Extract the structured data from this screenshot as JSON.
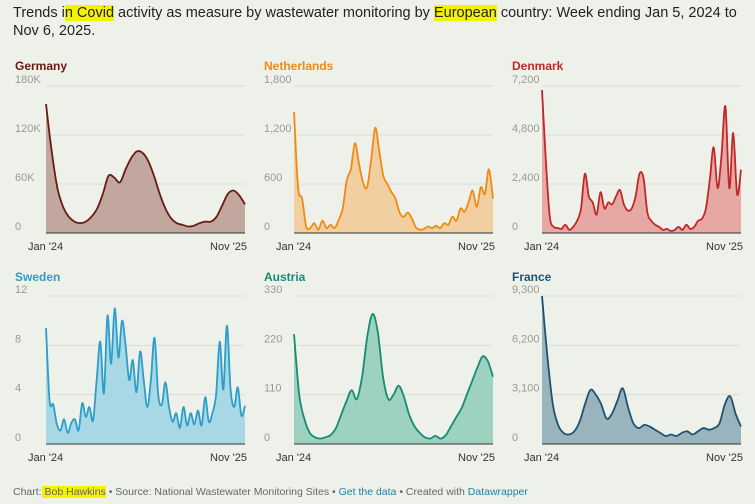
{
  "title": {
    "p1": "Trends i",
    "h1": "n Covid",
    "p2": " activity as measure by wastewater monitoring by ",
    "h2": "European",
    "p3": " country: Week ending Jan 5, 2024 to Nov 6, 2025."
  },
  "footer": {
    "chart_prefix": "Chart:",
    "author": " Bob Hawkins",
    "source": " • Source: National Wastewater Monitoring Sites • ",
    "get_data": "Get the data",
    "created": " • Created with ",
    "datawrapper": "Datawrapper"
  },
  "colors": {
    "background": "#eef1ea",
    "highlight": "#f3f200",
    "link": "#1d81a2"
  },
  "chart_data": [
    {
      "type": "area",
      "title": "Germany",
      "color": "#6b1a10",
      "fill": "#c2a79e",
      "yticks": [
        "180K",
        "120K",
        "60K",
        "0"
      ],
      "tick_values": [
        180000,
        120000,
        60000,
        0
      ],
      "ylim": [
        0,
        180000
      ],
      "xtick_labels": [
        "Jan '24",
        "Nov '25"
      ],
      "x": "weeks (Jan 5, 2024 – Nov 6, 2025)",
      "values": [
        158000,
        100000,
        55000,
        32000,
        20000,
        14000,
        12000,
        14000,
        20000,
        30000,
        48000,
        70000,
        68000,
        62000,
        78000,
        92000,
        100000,
        98000,
        88000,
        70000,
        48000,
        30000,
        18000,
        12000,
        10000,
        8000,
        9000,
        12000,
        14000,
        14000,
        20000,
        34000,
        48000,
        52000,
        46000,
        35000
      ]
    },
    {
      "type": "area",
      "title": "Netherlands",
      "color": "#ef8a13",
      "fill": "#f2cfa0",
      "yticks": [
        "1,800",
        "1,200",
        "600",
        "0"
      ],
      "tick_values": [
        1800,
        1200,
        600,
        0
      ],
      "ylim": [
        0,
        1800
      ],
      "xtick_labels": [
        "Jan '24",
        "Nov '25"
      ],
      "x": "weeks (Jan 5, 2024 – Nov 6, 2025)",
      "values": [
        1480,
        560,
        420,
        80,
        60,
        120,
        40,
        150,
        60,
        100,
        60,
        160,
        300,
        650,
        780,
        1100,
        850,
        620,
        560,
        900,
        1290,
        1000,
        700,
        600,
        500,
        420,
        250,
        200,
        250,
        180,
        70,
        40,
        50,
        80,
        60,
        90,
        60,
        120,
        100,
        200,
        150,
        300,
        260,
        380,
        520,
        320,
        560,
        480,
        780,
        420
      ]
    },
    {
      "type": "area",
      "title": "Denmark",
      "color": "#c22727",
      "fill": "#e6a8a4",
      "yticks": [
        "7,200",
        "4,800",
        "2,400",
        "0"
      ],
      "tick_values": [
        7200,
        4800,
        2400,
        0
      ],
      "ylim": [
        0,
        7200
      ],
      "xtick_labels": [
        "Jan '24",
        "Nov '25"
      ],
      "x": "weeks (Jan 5, 2024 – Nov 6, 2025)",
      "values": [
        7000,
        3500,
        800,
        300,
        250,
        200,
        400,
        150,
        300,
        600,
        1200,
        2900,
        1800,
        1500,
        900,
        2000,
        1200,
        1500,
        1400,
        1800,
        2100,
        1400,
        1100,
        1200,
        1800,
        2900,
        2700,
        1000,
        600,
        400,
        300,
        150,
        200,
        100,
        150,
        300,
        150,
        400,
        200,
        300,
        600,
        700,
        1200,
        2600,
        4200,
        2200,
        3800,
        6200,
        2200,
        4900,
        1900,
        3100
      ]
    },
    {
      "type": "area",
      "title": "Sweden",
      "color": "#2c9ec9",
      "fill": "#a8d8e6",
      "yticks": [
        "12",
        "8",
        "4",
        "0"
      ],
      "tick_values": [
        12,
        8,
        4,
        0
      ],
      "ylim": [
        0,
        12
      ],
      "xtick_labels": [
        "Jan '24",
        "Nov '25"
      ],
      "x": "weeks (Jan 5, 2024 – Nov 6, 2025)",
      "values": [
        9.4,
        3.5,
        3.2,
        1.6,
        1.1,
        2.0,
        0.9,
        1.7,
        2.0,
        1.1,
        3.3,
        2.2,
        3.0,
        1.9,
        5.2,
        8.3,
        4.1,
        10.4,
        6.5,
        11.0,
        7.0,
        10.0,
        8.0,
        5.2,
        6.8,
        4.2,
        7.5,
        5.2,
        3.0,
        5.2,
        8.6,
        4.0,
        3.2,
        5.0,
        3.0,
        1.8,
        2.5,
        1.3,
        3.0,
        1.5,
        2.5,
        1.6,
        2.7,
        1.5,
        3.8,
        1.8,
        2.5,
        4.0,
        8.3,
        4.4,
        9.6,
        4.5,
        3.0,
        4.6,
        2.3,
        3.1
      ]
    },
    {
      "type": "area",
      "title": "Austria",
      "color": "#168c72",
      "fill": "#9dd1c0",
      "yticks": [
        "330",
        "220",
        "110",
        "0"
      ],
      "tick_values": [
        330,
        220,
        110,
        0
      ],
      "ylim": [
        0,
        330
      ],
      "xtick_labels": [
        "Jan '24",
        "Nov '25"
      ],
      "x": "weeks (Jan 5, 2024 – Nov 6, 2025)",
      "values": [
        245,
        110,
        55,
        25,
        15,
        12,
        15,
        20,
        35,
        65,
        95,
        120,
        100,
        150,
        240,
        290,
        250,
        150,
        100,
        110,
        130,
        105,
        65,
        40,
        25,
        15,
        12,
        18,
        12,
        20,
        40,
        60,
        80,
        110,
        140,
        170,
        195,
        185,
        150
      ]
    },
    {
      "type": "area",
      "title": "France",
      "color": "#1f5270",
      "fill": "#9ab4bd",
      "yticks": [
        "9,300",
        "6,200",
        "3,100",
        "0"
      ],
      "tick_values": [
        9300,
        6200,
        3100,
        0
      ],
      "ylim": [
        0,
        9300
      ],
      "xtick_labels": [
        "Jan '24",
        "Nov '25"
      ],
      "x": "weeks (Jan 5, 2024 – Nov 6, 2025)",
      "values": [
        9300,
        5500,
        2500,
        1200,
        700,
        600,
        800,
        1400,
        2500,
        3400,
        3100,
        2500,
        1600,
        1900,
        2700,
        3500,
        2300,
        1300,
        1000,
        1200,
        1100,
        900,
        700,
        500,
        600,
        500,
        700,
        800,
        600,
        800,
        1000,
        900,
        1000,
        1300,
        2500,
        3000,
        1900,
        1100
      ]
    }
  ]
}
